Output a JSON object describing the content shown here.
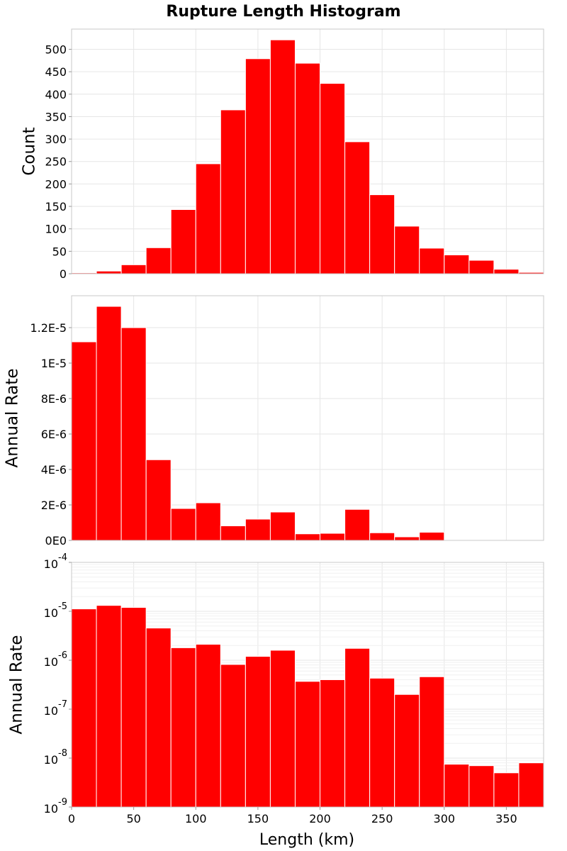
{
  "chart_data": [
    {
      "type": "bar",
      "title": "Rupture Length Histogram",
      "xlabel": "",
      "ylabel": "Count",
      "bin_width": 20,
      "x": [
        10,
        30,
        50,
        70,
        90,
        110,
        130,
        150,
        170,
        190,
        210,
        230,
        250,
        270,
        290,
        310,
        330,
        350,
        370
      ],
      "values": [
        2,
        6,
        20,
        58,
        143,
        245,
        365,
        479,
        521,
        469,
        424,
        294,
        176,
        106,
        57,
        42,
        30,
        10,
        3
      ],
      "xlim": [
        0,
        380
      ],
      "ylim": [
        0,
        545
      ],
      "y_ticks": [
        0,
        50,
        100,
        150,
        200,
        250,
        300,
        350,
        400,
        450,
        500
      ],
      "y_tick_labels": [
        "0",
        "50",
        "100",
        "150",
        "200",
        "250",
        "300",
        "350",
        "400",
        "450",
        "500"
      ],
      "x_tick_labels": [],
      "color": "#ff0000",
      "grid": true
    },
    {
      "type": "bar",
      "title": "",
      "xlabel": "",
      "ylabel": "Annual Rate",
      "bin_width": 20,
      "x": [
        10,
        30,
        50,
        70,
        90,
        110,
        130,
        150,
        170,
        190,
        210,
        230,
        250,
        270,
        290,
        310,
        330,
        350,
        370
      ],
      "values": [
        1.12e-05,
        1.32e-05,
        1.2e-05,
        4.55e-06,
        1.8e-06,
        2.12e-06,
        8.2e-07,
        1.2e-06,
        1.6e-06,
        3.7e-07,
        4e-07,
        1.75e-06,
        4.3e-07,
        2e-07,
        4.6e-07,
        7.5e-09,
        7e-09,
        5e-09,
        8e-09
      ],
      "xlim": [
        0,
        380
      ],
      "ylim": [
        0,
        1.38e-05
      ],
      "y_ticks": [
        0,
        2e-06,
        4e-06,
        6e-06,
        8e-06,
        1e-05,
        1.2e-05
      ],
      "y_tick_labels": [
        "0E0",
        "2E-6",
        "4E-6",
        "6E-6",
        "8E-6",
        "1E-5",
        "1.2E-5"
      ],
      "x_tick_labels": [],
      "color": "#ff0000",
      "grid": true
    },
    {
      "type": "bar",
      "title": "",
      "xlabel": "Length (km)",
      "ylabel": "Annual Rate",
      "yscale": "log",
      "bin_width": 20,
      "x": [
        10,
        30,
        50,
        70,
        90,
        110,
        130,
        150,
        170,
        190,
        210,
        230,
        250,
        270,
        290,
        310,
        330,
        350,
        370
      ],
      "values": [
        1.12e-05,
        1.32e-05,
        1.2e-05,
        4.55e-06,
        1.8e-06,
        2.12e-06,
        8.2e-07,
        1.2e-06,
        1.6e-06,
        3.7e-07,
        4e-07,
        1.75e-06,
        4.3e-07,
        2e-07,
        4.6e-07,
        7.5e-09,
        7e-09,
        5e-09,
        8e-09
      ],
      "xlim": [
        0,
        380
      ],
      "ylim": [
        1e-09,
        0.0001
      ],
      "y_ticks": [
        1e-09,
        1e-08,
        1e-07,
        1e-06,
        1e-05,
        0.0001
      ],
      "y_tick_labels": [
        {
          "base": "10",
          "exp": "-9"
        },
        {
          "base": "10",
          "exp": "-8"
        },
        {
          "base": "10",
          "exp": "-7"
        },
        {
          "base": "10",
          "exp": "-6"
        },
        {
          "base": "10",
          "exp": "-5"
        },
        {
          "base": "10",
          "exp": "-4"
        }
      ],
      "x_ticks": [
        0,
        50,
        100,
        150,
        200,
        250,
        300,
        350
      ],
      "x_tick_labels": [
        "0",
        "50",
        "100",
        "150",
        "200",
        "250",
        "300",
        "350"
      ],
      "color": "#ff0000",
      "grid": true
    }
  ]
}
